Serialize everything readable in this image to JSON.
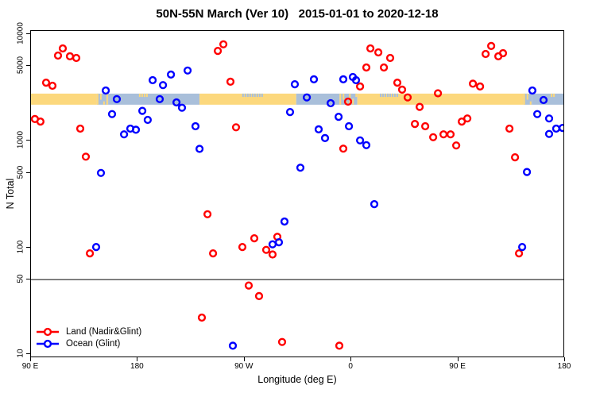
{
  "chart": {
    "title": "50N-55N March (Ver 10)   2015-01-01 to 2020-12-18",
    "xlabel": "Longitude (deg E)",
    "ylabel": "N Total",
    "colors": {
      "land": "#ff0000",
      "ocean": "#0000ff",
      "band_land": "#fcd87d",
      "band_ocean": "#a9bfda",
      "axis": "#000000",
      "background": "#ffffff"
    },
    "legend": [
      {
        "label": "Land (Nadir&Glint)",
        "color": "#ff0000",
        "name": "land"
      },
      {
        "label": "Ocean (Glint)",
        "color": "#0000ff",
        "name": "ocean"
      }
    ]
  },
  "chart_data": {
    "type": "scatter",
    "title": "50N-55N March (Ver 10)   2015-01-01 to 2020-12-18",
    "xlabel": "Longitude (deg E)",
    "ylabel": "N Total",
    "x_axis": {
      "range": [
        90,
        540
      ],
      "ticks": [
        {
          "pos": 90,
          "label": "90 E"
        },
        {
          "pos": 180,
          "label": "180"
        },
        {
          "pos": 270,
          "label": "90 W"
        },
        {
          "pos": 360,
          "label": "0"
        },
        {
          "pos": 450,
          "label": "90 E"
        },
        {
          "pos": 540,
          "label": "180"
        }
      ]
    },
    "y_axis": {
      "scale": "log",
      "range": [
        10,
        10000
      ],
      "ticks": [
        {
          "value": 10,
          "label": "10"
        },
        {
          "value": 50,
          "label": "50"
        },
        {
          "value": 100,
          "label": "100"
        },
        {
          "value": 500,
          "label": "500"
        },
        {
          "value": 1000,
          "label": "1000"
        },
        {
          "value": 5000,
          "label": "5000"
        },
        {
          "value": 10000,
          "label": "10000"
        }
      ]
    },
    "abline_y": 50,
    "map_band": {
      "n_top": 2770,
      "n_bottom": 2180,
      "segments": [
        {
          "from": 90,
          "to": 145.5,
          "type": "land"
        },
        {
          "from": 145.5,
          "to": 155,
          "type": "mix"
        },
        {
          "from": 155,
          "to": 232,
          "type": "ocean"
        },
        {
          "from": 181,
          "to": 188,
          "type": "land-top-specks"
        },
        {
          "from": 232,
          "to": 313.5,
          "type": "land"
        },
        {
          "from": 268,
          "to": 286,
          "type": "ocean-top-specks"
        },
        {
          "from": 313.5,
          "to": 350,
          "type": "ocean"
        },
        {
          "from": 350,
          "to": 365,
          "type": "mix"
        },
        {
          "from": 365,
          "to": 505,
          "type": "land"
        },
        {
          "from": 384,
          "to": 399,
          "type": "ocean-top-specks"
        },
        {
          "from": 505,
          "to": 512,
          "type": "mix"
        },
        {
          "from": 512,
          "to": 540,
          "type": "ocean"
        },
        {
          "from": 528,
          "to": 532,
          "type": "land-top-specks"
        }
      ]
    },
    "series": [
      {
        "name": "Land (Nadir&Glint)",
        "color": "#ff0000",
        "points": [
          [
            116.8,
            7350
          ],
          [
            112.8,
            6300
          ],
          [
            122.8,
            6200
          ],
          [
            128.2,
            5980
          ],
          [
            102.7,
            3510
          ],
          [
            108.1,
            3280
          ],
          [
            93.3,
            1600
          ],
          [
            98,
            1515
          ],
          [
            131.5,
            1300
          ],
          [
            136.2,
            710
          ],
          [
            139.6,
            88
          ],
          [
            238.7,
            205
          ],
          [
            243.4,
            88
          ],
          [
            262.8,
            1340
          ],
          [
            268.1,
            101
          ],
          [
            278.2,
            122
          ],
          [
            288.2,
            95
          ],
          [
            293.6,
            86
          ],
          [
            297.6,
            126
          ],
          [
            273.5,
            44
          ],
          [
            282.2,
            35
          ],
          [
            234,
            22
          ],
          [
            301.6,
            13
          ],
          [
            349.8,
            12
          ],
          [
            353.2,
            845
          ],
          [
            413.5,
            1440
          ],
          [
            422.2,
            1370
          ],
          [
            428.9,
            1080
          ],
          [
            437.6,
            1150
          ],
          [
            443.6,
            1150
          ],
          [
            448.3,
            905
          ],
          [
            453,
            1515
          ],
          [
            457.7,
            1620
          ],
          [
            493.2,
            1300
          ],
          [
            497.9,
            700
          ],
          [
            501.2,
            88
          ],
          [
            357.2,
            2330
          ],
          [
            367.3,
            3230
          ],
          [
            372.6,
            4870
          ],
          [
            376,
            7350
          ],
          [
            382.7,
            6740
          ],
          [
            387.4,
            4870
          ],
          [
            392.7,
            5980
          ],
          [
            398.7,
            3510
          ],
          [
            402.7,
            3020
          ],
          [
            407.4,
            2550
          ],
          [
            417.5,
            2080
          ],
          [
            432.9,
            2790
          ],
          [
            462.4,
            3430
          ],
          [
            468.4,
            3230
          ],
          [
            477.8,
            7740
          ],
          [
            473.1,
            6520
          ],
          [
            483.8,
            6200
          ],
          [
            487.8,
            6630
          ],
          [
            247.4,
            6970
          ],
          [
            252.1,
            8030
          ],
          [
            258.1,
            3580
          ]
        ]
      },
      {
        "name": "Ocean (Glint)",
        "color": "#0000ff",
        "points": [
          [
            153,
            2960
          ],
          [
            162.3,
            2460
          ],
          [
            192.5,
            3700
          ],
          [
            201.2,
            3330
          ],
          [
            207.9,
            4180
          ],
          [
            222,
            4560
          ],
          [
            198.5,
            2460
          ],
          [
            212.6,
            2290
          ],
          [
            217.2,
            2040
          ],
          [
            158.3,
            1780
          ],
          [
            183.8,
            1910
          ],
          [
            188.4,
            1570
          ],
          [
            168.4,
            1150
          ],
          [
            173.7,
            1300
          ],
          [
            178.4,
            1270
          ],
          [
            228.6,
            1370
          ],
          [
            232,
            840
          ],
          [
            148.9,
            500
          ],
          [
            144.9,
            101
          ],
          [
            303.6,
            175
          ],
          [
            293.6,
            107
          ],
          [
            298.9,
            112
          ],
          [
            260.1,
            12
          ],
          [
            312.3,
            3390
          ],
          [
            328.4,
            3770
          ],
          [
            322.4,
            2550
          ],
          [
            342.5,
            2250
          ],
          [
            353.2,
            3770
          ],
          [
            361.2,
            3960
          ],
          [
            363.9,
            3700
          ],
          [
            349.2,
            1680
          ],
          [
            332.4,
            1280
          ],
          [
            337.8,
            1060
          ],
          [
            357.9,
            1370
          ],
          [
            367.3,
            1010
          ],
          [
            372.6,
            910
          ],
          [
            317,
            560
          ],
          [
            379.3,
            255
          ],
          [
            507.9,
            510
          ],
          [
            503.9,
            101
          ],
          [
            512.5,
            2960
          ],
          [
            521.9,
            2410
          ],
          [
            516.6,
            1780
          ],
          [
            526.6,
            1620
          ],
          [
            526.6,
            1160
          ],
          [
            532.6,
            1300
          ],
          [
            538,
            1320
          ],
          [
            308.3,
            1860
          ]
        ]
      }
    ],
    "grid": false,
    "legend_position": "bottom-left"
  }
}
